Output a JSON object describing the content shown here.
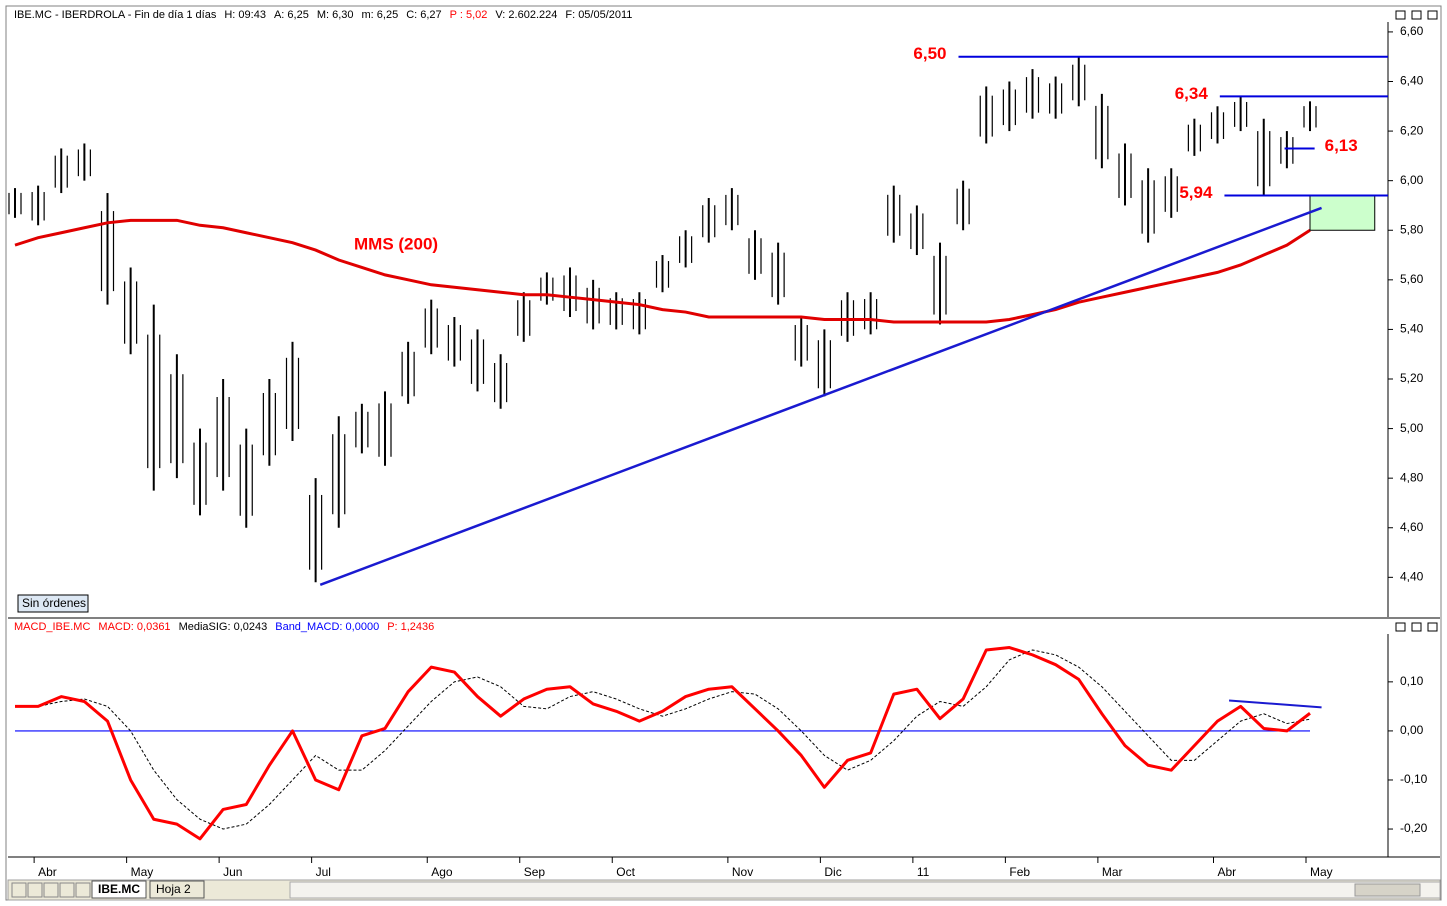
{
  "chart_data": [
    {
      "type": "ohlc",
      "title": "IBE.MC - IBERDROLA - Fin de día 1 días",
      "info": [
        "H: 09:43",
        "A: 6,25",
        "M: 6,30",
        "m: 6,25",
        "C: 6,27",
        "P : 5,02",
        "V: 2.602.224",
        "F: 05/05/2011"
      ],
      "info_colors": [
        "#000000",
        "#000000",
        "#000000",
        "#000000",
        "#000000",
        "#ff0000",
        "#000000",
        "#000000"
      ],
      "categories": [
        null,
        "Abr",
        null,
        null,
        null,
        "May",
        null,
        null,
        null,
        "Jun",
        null,
        null,
        null,
        "Jul",
        null,
        null,
        null,
        null,
        "Ago",
        null,
        null,
        null,
        "Sep",
        null,
        null,
        null,
        "Oct",
        null,
        null,
        null,
        null,
        "Nov",
        null,
        null,
        null,
        "Dic",
        null,
        null,
        null,
        "11",
        null,
        null,
        null,
        "Feb",
        null,
        null,
        null,
        "Mar",
        null,
        null,
        null,
        null,
        "Abr",
        null,
        null,
        null,
        "May"
      ],
      "high": [
        5.97,
        5.98,
        6.13,
        6.15,
        5.95,
        5.65,
        5.5,
        5.3,
        5.0,
        5.2,
        5.0,
        5.2,
        5.35,
        4.8,
        5.05,
        5.1,
        5.15,
        5.35,
        5.52,
        5.45,
        5.4,
        5.3,
        5.55,
        5.63,
        5.65,
        5.6,
        5.55,
        5.55,
        5.7,
        5.8,
        5.93,
        5.97,
        5.8,
        5.75,
        5.45,
        5.4,
        5.55,
        5.55,
        5.98,
        5.9,
        5.75,
        6.0,
        6.38,
        6.4,
        6.45,
        6.42,
        6.5,
        6.35,
        6.15,
        6.05,
        6.05,
        6.25,
        6.3,
        6.34,
        6.25,
        6.2,
        6.32
      ],
      "low": [
        5.85,
        5.82,
        5.95,
        6.0,
        5.5,
        5.3,
        4.75,
        4.8,
        4.65,
        4.75,
        4.6,
        4.85,
        4.95,
        4.38,
        4.6,
        4.9,
        4.85,
        5.1,
        5.3,
        5.25,
        5.15,
        5.08,
        5.35,
        5.5,
        5.45,
        5.4,
        5.4,
        5.38,
        5.55,
        5.65,
        5.75,
        5.8,
        5.6,
        5.5,
        5.25,
        5.13,
        5.35,
        5.38,
        5.75,
        5.7,
        5.42,
        5.8,
        6.15,
        6.2,
        6.25,
        6.25,
        6.3,
        6.05,
        5.9,
        5.75,
        5.85,
        6.1,
        6.15,
        6.2,
        5.94,
        6.05,
        6.2
      ],
      "color": "#000000",
      "series": [
        {
          "name": "MMS (200)",
          "color": "#e00000",
          "values": [
            5.74,
            5.77,
            5.79,
            5.81,
            5.83,
            5.84,
            5.84,
            5.84,
            5.82,
            5.81,
            5.79,
            5.77,
            5.75,
            5.72,
            5.68,
            5.65,
            5.62,
            5.6,
            5.58,
            5.57,
            5.56,
            5.55,
            5.54,
            5.54,
            5.53,
            5.52,
            5.51,
            5.5,
            5.48,
            5.47,
            5.45,
            5.45,
            5.45,
            5.45,
            5.45,
            5.44,
            5.44,
            5.44,
            5.43,
            5.43,
            5.43,
            5.43,
            5.43,
            5.44,
            5.46,
            5.48,
            5.51,
            5.53,
            5.55,
            5.57,
            5.59,
            5.61,
            5.63,
            5.66,
            5.7,
            5.74,
            5.8
          ]
        }
      ],
      "ylim": [
        4.24,
        6.64
      ],
      "yticks": [
        {
          "value": 4.4,
          "label": "4,40"
        },
        {
          "value": 4.6,
          "label": "4,60"
        },
        {
          "value": 4.8,
          "label": "4,80"
        },
        {
          "value": 5.0,
          "label": "5,00"
        },
        {
          "value": 5.2,
          "label": "5,20"
        },
        {
          "value": 5.4,
          "label": "5,40"
        },
        {
          "value": 5.6,
          "label": "5,60"
        },
        {
          "value": 5.8,
          "label": "5,80"
        },
        {
          "value": 6.0,
          "label": "6,00"
        },
        {
          "value": 6.2,
          "label": "6,20"
        },
        {
          "value": 6.4,
          "label": "6,40"
        },
        {
          "value": 6.6,
          "label": "6,60"
        }
      ],
      "levels": [
        {
          "value": 6.5,
          "label": "6,50",
          "from": 40.8
        },
        {
          "value": 6.34,
          "label": "6,34",
          "from": 52.1
        },
        {
          "value": 6.13,
          "label": "6,13",
          "from": 54.9,
          "to": 56.2
        },
        {
          "value": 5.94,
          "label": "5,94",
          "from": 52.3
        }
      ],
      "level_color": "#0000dd",
      "trendline": [
        {
          "x": 13.2,
          "y": 4.37
        },
        {
          "x": 56.5,
          "y": 5.89
        }
      ],
      "trend_color": "#1a1ad0",
      "box": {
        "x": [
          56,
          58.8
        ],
        "y": [
          5.8,
          5.94
        ],
        "color": "#ccffcc"
      }
    },
    {
      "type": "line",
      "title": "MACD_IBE.MC",
      "info": [
        "MACD: 0,0361",
        "MediaSIG: 0,0243",
        "Band_MACD: 0,0000",
        "P: 1,2436"
      ],
      "info_colors": [
        "#ff0000",
        "#000000",
        "#0000ff",
        "#ff0000"
      ],
      "series": [
        {
          "color": "#ff0000",
          "dashed": false,
          "values": [
            0.05,
            0.05,
            0.07,
            0.06,
            0.02,
            -0.1,
            -0.18,
            -0.19,
            -0.22,
            -0.16,
            -0.15,
            -0.07,
            0.0,
            -0.1,
            -0.12,
            -0.01,
            0.005,
            0.08,
            0.13,
            0.12,
            0.07,
            0.03,
            0.065,
            0.085,
            0.09,
            0.055,
            0.04,
            0.02,
            0.04,
            0.07,
            0.085,
            0.09,
            0.045,
            0.0,
            -0.05,
            -0.115,
            -0.06,
            -0.045,
            0.075,
            0.085,
            0.025,
            0.065,
            0.165,
            0.17,
            0.155,
            0.135,
            0.105,
            0.035,
            -0.03,
            -0.07,
            -0.08,
            -0.03,
            0.02,
            0.05,
            0.005,
            0.0,
            0.036
          ]
        },
        {
          "color": "#000000",
          "dashed": true,
          "values": [
            0.05,
            0.05,
            0.06,
            0.065,
            0.05,
            0.0,
            -0.08,
            -0.14,
            -0.18,
            -0.2,
            -0.19,
            -0.15,
            -0.1,
            -0.05,
            -0.08,
            -0.08,
            -0.04,
            0.01,
            0.06,
            0.1,
            0.11,
            0.09,
            0.05,
            0.045,
            0.07,
            0.08,
            0.065,
            0.045,
            0.03,
            0.045,
            0.065,
            0.08,
            0.075,
            0.045,
            0.0,
            -0.05,
            -0.08,
            -0.06,
            -0.02,
            0.03,
            0.06,
            0.05,
            0.09,
            0.145,
            0.165,
            0.155,
            0.13,
            0.09,
            0.04,
            -0.01,
            -0.06,
            -0.06,
            -0.02,
            0.02,
            0.035,
            0.015,
            0.024
          ]
        }
      ],
      "band": 0,
      "band_color": "#0000ff",
      "ylim": [
        -0.257,
        0.222
      ],
      "yticks": [
        {
          "value": -0.2,
          "label": "-0,20"
        },
        {
          "value": -0.1,
          "label": "-0,10"
        },
        {
          "value": 0,
          "label": "0,00"
        },
        {
          "value": 0.1,
          "label": "0,10"
        }
      ],
      "trendline": [
        {
          "x": 52.5,
          "y": 0.062
        },
        {
          "x": 56.5,
          "y": 0.048
        }
      ],
      "trend_color": "#1a1ad0"
    }
  ],
  "ui": {
    "button": "Sin órdenes",
    "tabs": [
      "IBE.MC",
      "Hoja 2"
    ]
  }
}
